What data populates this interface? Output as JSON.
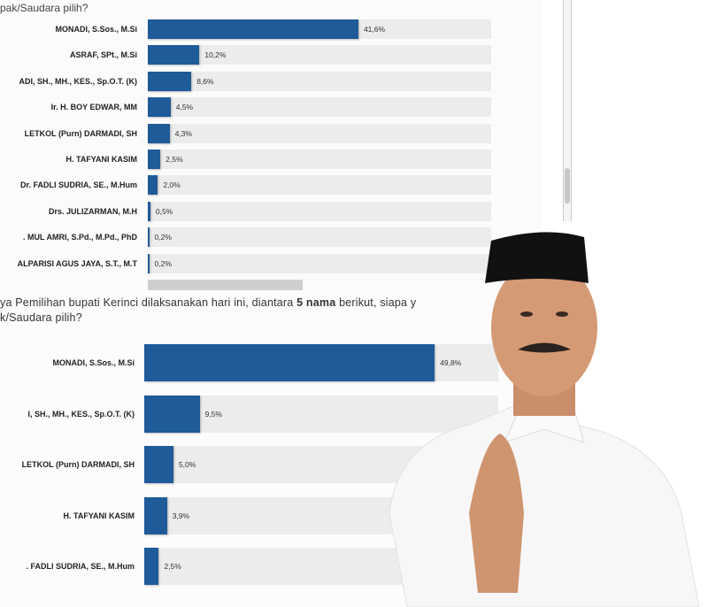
{
  "question_top_fragment": "pak/Saudara pilih?",
  "question2": {
    "line1_pre": "ya Pemilihan bupati Kerinci dilaksanakan hari ini, diantara ",
    "line1_bold": "5 nama",
    "line1_post": " berikut, siapa y",
    "line2": "k/Saudara pilih?"
  },
  "colors": {
    "bar": "#1f5a99",
    "track": "#ececec"
  },
  "chart_data": [
    {
      "type": "bar",
      "orientation": "horizontal",
      "categories": [
        "MONADI, S.Sos., M.Si",
        "ASRAF, SPt., M.Si",
        "ADI, SH., MH., KES., Sp.O.T. (K)",
        "Ir. H. BOY EDWAR, MM",
        "LETKOL (Purn) DARMADI, SH",
        "H. TAFYANI KASIM",
        "Dr. FADLI SUDRIA, SE., M.Hum",
        "Drs. JULIZARMAN, M.H",
        ". MUL AMRI, S.Pd., M.Pd., PhD",
        "ALPARISI AGUS JAYA, S.T., M.T"
      ],
      "values": [
        41.6,
        10.2,
        8.6,
        4.5,
        4.3,
        2.5,
        2.0,
        0.5,
        0.2,
        0.2
      ],
      "value_labels": [
        "41,6%",
        "10,2%",
        "8,6%",
        "4,5%",
        "4,3%",
        "2,5%",
        "2,0%",
        "0,5%",
        "0,2%",
        "0,2%"
      ],
      "unit": "%"
    },
    {
      "type": "bar",
      "orientation": "horizontal",
      "categories": [
        "MONADI, S.Sos., M.Si",
        "I, SH., MH., KES., Sp.O.T. (K)",
        "LETKOL (Purn) DARMADI, SH",
        "H. TAFYANI KASIM",
        ". FADLI SUDRIA, SE., M.Hum"
      ],
      "values": [
        49.8,
        9.5,
        5.0,
        3.9,
        2.5
      ],
      "value_labels": [
        "49,8%",
        "9,5%",
        "5,0%",
        "3,9%",
        "2,5%"
      ],
      "unit": "%"
    }
  ]
}
